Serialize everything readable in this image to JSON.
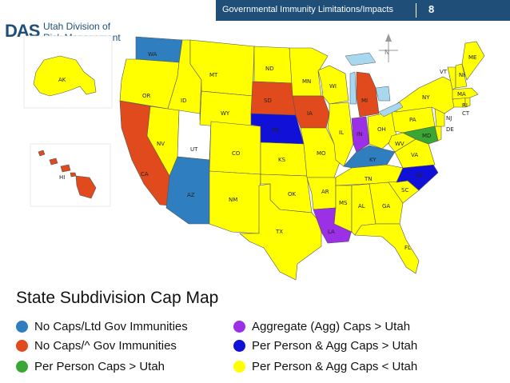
{
  "header": {
    "title": "Governmental Immunity Limitations/Impacts",
    "page_number": "8"
  },
  "logo": {
    "mark": "DAS",
    "line1": "Utah Division of",
    "line2": "Risk Management"
  },
  "map": {
    "title": "State Subdivision Cap Map",
    "compass_label": "N",
    "categories": {
      "blue_light": {
        "label": "No Caps/Ltd Gov Immunities",
        "color": "#2f7fc0"
      },
      "orange": {
        "label": "No Caps/^ Gov Immunities",
        "color": "#e04a1c"
      },
      "green": {
        "label": "Per Person Caps > Utah",
        "color": "#3aa735"
      },
      "purple": {
        "label": "Aggregate (Agg) Caps > Utah",
        "color": "#9b30e6"
      },
      "blue_dark": {
        "label": "Per Person & Agg Caps > Utah",
        "color": "#1010d8"
      },
      "yellow": {
        "label": "Per Person & Agg Caps < Utah",
        "color": "#ffff00"
      },
      "white": {
        "label": "",
        "color": "#ffffff"
      }
    },
    "states": [
      {
        "abbr": "WA",
        "category": "blue_light"
      },
      {
        "abbr": "OR",
        "category": "yellow"
      },
      {
        "abbr": "CA",
        "category": "orange"
      },
      {
        "abbr": "ID",
        "category": "yellow"
      },
      {
        "abbr": "NV",
        "category": "yellow"
      },
      {
        "abbr": "UT",
        "category": "white"
      },
      {
        "abbr": "AZ",
        "category": "blue_light"
      },
      {
        "abbr": "MT",
        "category": "yellow"
      },
      {
        "abbr": "WY",
        "category": "yellow"
      },
      {
        "abbr": "CO",
        "category": "yellow"
      },
      {
        "abbr": "NM",
        "category": "yellow"
      },
      {
        "abbr": "ND",
        "category": "yellow"
      },
      {
        "abbr": "SD",
        "category": "orange"
      },
      {
        "abbr": "NE",
        "category": "blue_dark"
      },
      {
        "abbr": "KS",
        "category": "yellow"
      },
      {
        "abbr": "OK",
        "category": "yellow"
      },
      {
        "abbr": "TX",
        "category": "yellow"
      },
      {
        "abbr": "MN",
        "category": "yellow"
      },
      {
        "abbr": "IA",
        "category": "orange"
      },
      {
        "abbr": "MO",
        "category": "yellow"
      },
      {
        "abbr": "AR",
        "category": "yellow"
      },
      {
        "abbr": "LA",
        "category": "purple"
      },
      {
        "abbr": "WI",
        "category": "yellow"
      },
      {
        "abbr": "IL",
        "category": "yellow"
      },
      {
        "abbr": "MI",
        "category": "orange"
      },
      {
        "abbr": "IN",
        "category": "purple"
      },
      {
        "abbr": "OH",
        "category": "yellow"
      },
      {
        "abbr": "KY",
        "category": "blue_light"
      },
      {
        "abbr": "TN",
        "category": "yellow"
      },
      {
        "abbr": "MS",
        "category": "yellow"
      },
      {
        "abbr": "AL",
        "category": "yellow"
      },
      {
        "abbr": "GA",
        "category": "yellow"
      },
      {
        "abbr": "FL",
        "category": "yellow"
      },
      {
        "abbr": "SC",
        "category": "yellow"
      },
      {
        "abbr": "NC",
        "category": "blue_dark"
      },
      {
        "abbr": "VA",
        "category": "yellow"
      },
      {
        "abbr": "WV",
        "category": "yellow"
      },
      {
        "abbr": "PA",
        "category": "yellow"
      },
      {
        "abbr": "NY",
        "category": "yellow"
      },
      {
        "abbr": "MD",
        "category": "green"
      },
      {
        "abbr": "DE",
        "category": "yellow"
      },
      {
        "abbr": "NJ",
        "category": "yellow"
      },
      {
        "abbr": "CT",
        "category": "yellow"
      },
      {
        "abbr": "RI",
        "category": "yellow"
      },
      {
        "abbr": "MA",
        "category": "yellow"
      },
      {
        "abbr": "VT",
        "category": "yellow"
      },
      {
        "abbr": "NH",
        "category": "yellow"
      },
      {
        "abbr": "ME",
        "category": "yellow"
      },
      {
        "abbr": "AK",
        "category": "yellow"
      },
      {
        "abbr": "HI",
        "category": "orange"
      }
    ],
    "legend": [
      {
        "label": "No Caps/Ltd Gov Immunities",
        "color": "#2f7fc0"
      },
      {
        "label": "No Caps/^ Gov Immunities",
        "color": "#e04a1c"
      },
      {
        "label": "Per Person Caps > Utah",
        "color": "#3aa735"
      },
      {
        "label": "Aggregate (Agg) Caps > Utah",
        "color": "#9b30e6"
      },
      {
        "label": "Per Person & Agg Caps > Utah",
        "color": "#1010d8"
      },
      {
        "label": "Per Person & Agg Caps < Utah",
        "color": "#ffff00"
      }
    ]
  }
}
